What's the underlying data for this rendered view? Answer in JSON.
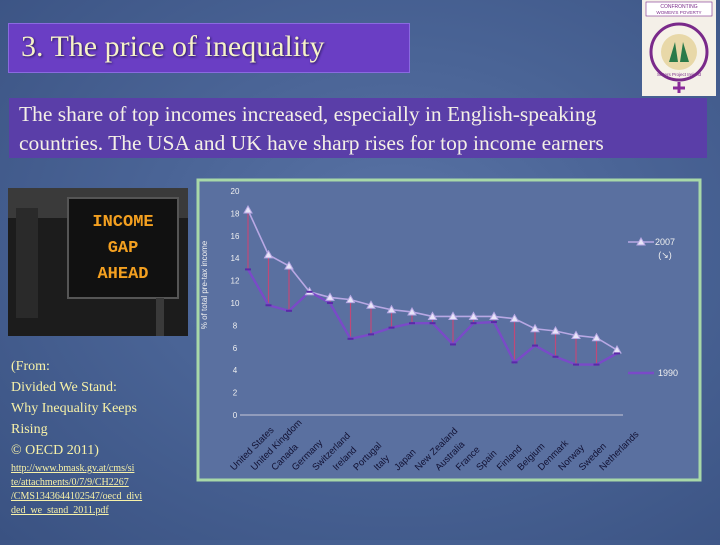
{
  "slide": {
    "title": "3. The price of inequality",
    "subtitle_line1": "The share of top incomes increased, especially in English-speaking",
    "subtitle_line2": "countries. The USA and UK have sharp rises for top income earners",
    "sign_text": [
      "INCOME",
      "GAP",
      "AHEAD"
    ],
    "logo_text": [
      "CONFRONTING",
      "WOMEN'S POVERTY",
      "Sisters Project Ireland"
    ]
  },
  "source": {
    "lines": [
      "(From:",
      "Divided We Stand:",
      "Why Inequality Keeps",
      "Rising",
      "© OECD 2011)"
    ],
    "url_lines": [
      "http://www.bmask.gv.at/cms/si",
      "te/attachments/0/7/9/CH2267",
      "/CMS1343644102547/oecd_divi",
      "ded_we_stand_2011.pdf"
    ]
  },
  "chart_data": {
    "type": "line",
    "ylabel": "% of total pre-tax income",
    "ylim": [
      0,
      20
    ],
    "yticks": [
      0,
      2,
      4,
      6,
      8,
      10,
      12,
      14,
      16,
      18,
      20
    ],
    "categories": [
      "United States",
      "United Kingdom",
      "Canada",
      "Germany",
      "Switzerland",
      "Ireland",
      "Portugal",
      "Italy",
      "Japan",
      "New Zealand",
      "Australia",
      "France",
      "Spain",
      "Finland",
      "Belgium",
      "Denmark",
      "Norway",
      "Sweden",
      "Netherlands"
    ],
    "series": [
      {
        "name": "2007 (↘)",
        "color": "#b8a8e4",
        "values": [
          18.3,
          14.3,
          13.3,
          11.0,
          10.5,
          10.3,
          9.8,
          9.4,
          9.2,
          8.8,
          8.8,
          8.8,
          8.8,
          8.6,
          7.7,
          7.5,
          7.1,
          6.9,
          5.8
        ]
      },
      {
        "name": "1990",
        "color": "#7a4ac8",
        "values": [
          13.0,
          9.8,
          9.3,
          11.0,
          10.0,
          6.8,
          7.2,
          7.8,
          8.2,
          8.2,
          6.3,
          8.2,
          8.3,
          4.7,
          6.2,
          5.2,
          4.5,
          4.5,
          5.5
        ]
      }
    ],
    "legend": "right"
  }
}
